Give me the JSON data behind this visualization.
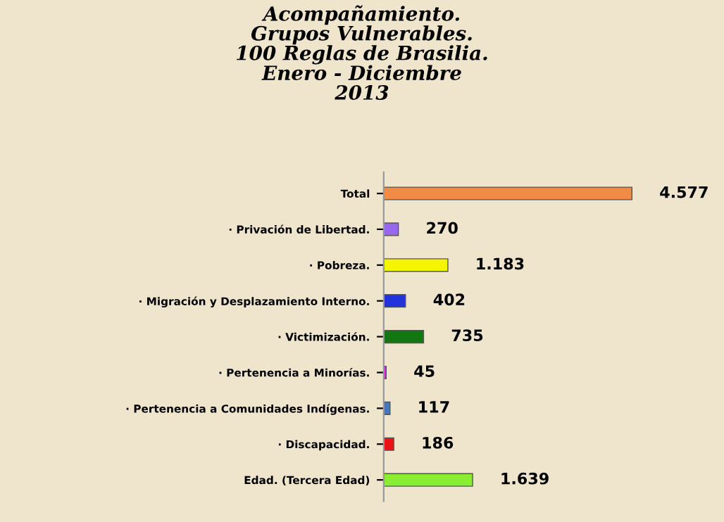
{
  "chart_data": {
    "type": "bar",
    "orientation": "horizontal",
    "title": "Acompañamiento.\nGrupos Vulnerables.\n100 Reglas de Brasilia.\nEnero - Diciembre\n2013",
    "categories": [
      "Total",
      "· Privación de Libertad.",
      "· Pobreza.",
      "· Migración y Desplazamiento Interno.",
      "· Victimización.",
      "· Pertenencia a Minorías.",
      "· Pertenencia a Comunidades Indígenas.",
      "· Discapacidad.",
      "Edad. (Tercera Edad)"
    ],
    "values": [
      4577,
      270,
      1183,
      402,
      735,
      45,
      117,
      186,
      1639
    ],
    "colors": [
      "#f08c46",
      "#9966ee",
      "#f5f500",
      "#2233dd",
      "#117711",
      "#dd22dd",
      "#4477bb",
      "#ee1111",
      "#88ee33"
    ],
    "value_labels": [
      "4.577",
      "270",
      "1.183",
      "402",
      "735",
      "45",
      "117",
      "186",
      "1.639"
    ],
    "grid": false,
    "legend": false,
    "tick_labels": "y"
  }
}
